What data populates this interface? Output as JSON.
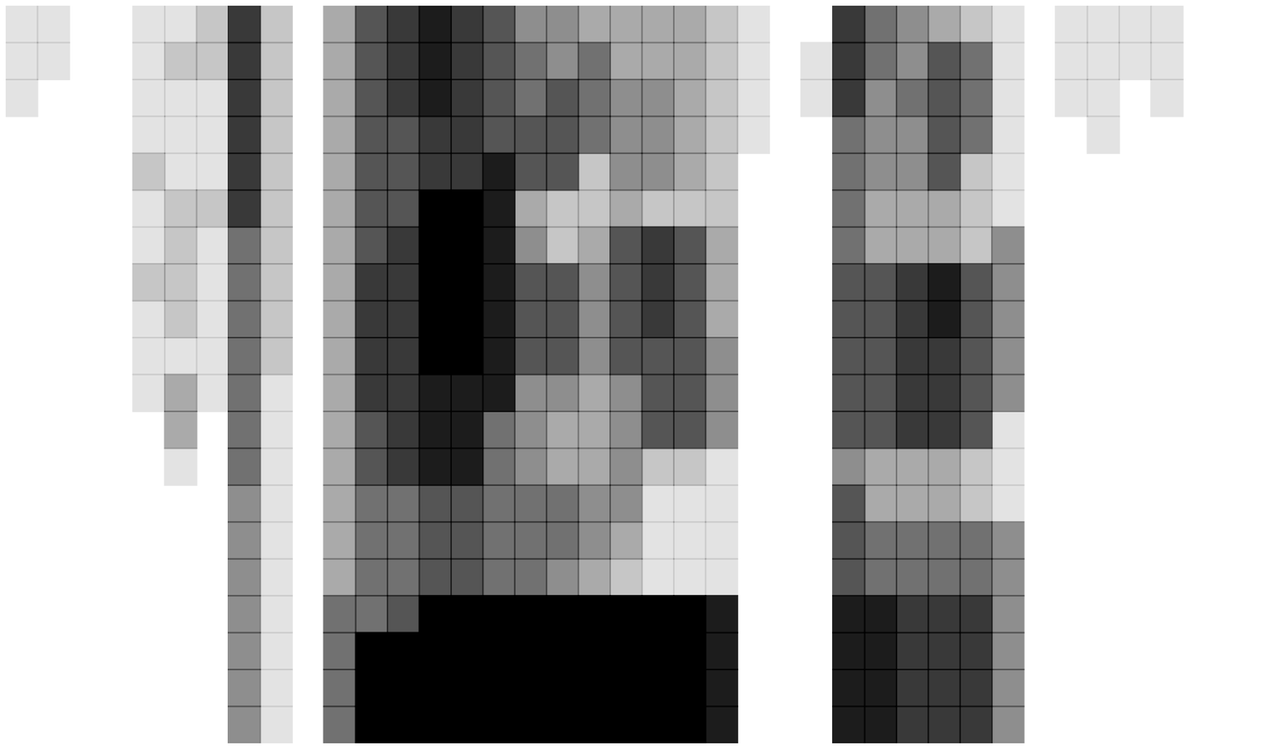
{
  "chart_data": {
    "type": "heatmap",
    "tick_labels": false,
    "xlim": [
      0,
      40
    ],
    "ylim": [
      0,
      20
    ],
    "value_range": [
      0,
      9
    ],
    "color": "#000000",
    "cells": [
      [
        1,
        1,
        1,
        0,
        0,
        0,
        0,
        0,
        0,
        0,
        0,
        0,
        0,
        0,
        0,
        0,
        0,
        0,
        0,
        0
      ],
      [
        1,
        1,
        0,
        0,
        0,
        0,
        0,
        0,
        0,
        0,
        0,
        0,
        0,
        0,
        0,
        0,
        0,
        0,
        0,
        0
      ],
      [
        0,
        0,
        0,
        0,
        0,
        0,
        0,
        0,
        0,
        0,
        0,
        0,
        0,
        0,
        0,
        0,
        0,
        0,
        0,
        0
      ],
      [
        0,
        0,
        0,
        0,
        0,
        0,
        0,
        0,
        0,
        0,
        0,
        0,
        0,
        0,
        0,
        0,
        0,
        0,
        0,
        0
      ],
      [
        1,
        1,
        1,
        1,
        2,
        1,
        1,
        2,
        1,
        1,
        1,
        0,
        0,
        0,
        0,
        0,
        0,
        0,
        0,
        0
      ],
      [
        1,
        2,
        1,
        1,
        1,
        2,
        2,
        2,
        2,
        1,
        3,
        3,
        1,
        0,
        0,
        0,
        0,
        0,
        0,
        0
      ],
      [
        2,
        2,
        1,
        1,
        1,
        2,
        1,
        1,
        1,
        1,
        1,
        0,
        0,
        0,
        0,
        0,
        0,
        0,
        0,
        0
      ],
      [
        7,
        7,
        7,
        7,
        7,
        7,
        5,
        5,
        5,
        5,
        5,
        5,
        5,
        4,
        4,
        4,
        4,
        4,
        4,
        4
      ],
      [
        2,
        2,
        2,
        2,
        2,
        2,
        2,
        2,
        2,
        2,
        1,
        1,
        1,
        1,
        1,
        1,
        1,
        1,
        1,
        1
      ],
      [
        0,
        0,
        0,
        0,
        0,
        0,
        0,
        0,
        0,
        0,
        0,
        0,
        0,
        0,
        0,
        0,
        0,
        0,
        0,
        0
      ],
      [
        3,
        3,
        3,
        3,
        3,
        3,
        3,
        3,
        3,
        3,
        3,
        3,
        3,
        3,
        3,
        3,
        5,
        5,
        5,
        5
      ],
      [
        6,
        6,
        6,
        6,
        6,
        6,
        6,
        7,
        7,
        7,
        7,
        6,
        6,
        5,
        5,
        5,
        5,
        9,
        9,
        9
      ],
      [
        7,
        7,
        7,
        6,
        6,
        6,
        7,
        7,
        7,
        7,
        7,
        7,
        7,
        5,
        5,
        5,
        6,
        9,
        9,
        9
      ],
      [
        8,
        8,
        8,
        7,
        7,
        9,
        9,
        9,
        9,
        9,
        8,
        8,
        8,
        6,
        6,
        6,
        9,
        9,
        9,
        9
      ],
      [
        7,
        7,
        7,
        7,
        7,
        9,
        9,
        9,
        9,
        9,
        8,
        8,
        8,
        6,
        6,
        6,
        9,
        9,
        9,
        9
      ],
      [
        6,
        6,
        6,
        6,
        8,
        8,
        8,
        8,
        8,
        8,
        8,
        5,
        5,
        5,
        5,
        5,
        9,
        9,
        9,
        9
      ],
      [
        4,
        5,
        5,
        6,
        6,
        3,
        4,
        6,
        6,
        6,
        4,
        4,
        4,
        5,
        5,
        5,
        9,
        9,
        9,
        9
      ],
      [
        4,
        4,
        6,
        6,
        6,
        2,
        2,
        6,
        6,
        6,
        4,
        3,
        3,
        5,
        5,
        4,
        9,
        9,
        9,
        9
      ],
      [
        3,
        5,
        5,
        5,
        2,
        2,
        3,
        4,
        4,
        4,
        3,
        3,
        3,
        4,
        4,
        3,
        9,
        9,
        9,
        9
      ],
      [
        3,
        3,
        4,
        4,
        4,
        3,
        6,
        6,
        6,
        6,
        4,
        4,
        4,
        4,
        3,
        2,
        9,
        9,
        9,
        9
      ],
      [
        3,
        3,
        4,
        4,
        4,
        2,
        7,
        7,
        7,
        6,
        6,
        6,
        2,
        1,
        1,
        1,
        9,
        9,
        9,
        9
      ],
      [
        3,
        3,
        3,
        3,
        3,
        2,
        6,
        6,
        6,
        6,
        6,
        6,
        2,
        1,
        1,
        1,
        9,
        9,
        9,
        9
      ],
      [
        2,
        2,
        2,
        2,
        2,
        2,
        3,
        3,
        3,
        4,
        4,
        4,
        1,
        1,
        1,
        1,
        8,
        8,
        8,
        8
      ],
      [
        1,
        1,
        1,
        1,
        0,
        0,
        0,
        0,
        0,
        0,
        0,
        0,
        0,
        0,
        0,
        0,
        0,
        0,
        0,
        0
      ],
      [
        0,
        0,
        0,
        0,
        0,
        0,
        0,
        0,
        0,
        0,
        0,
        0,
        0,
        0,
        0,
        0,
        0,
        0,
        0,
        0
      ],
      [
        0,
        1,
        1,
        0,
        0,
        0,
        0,
        0,
        0,
        0,
        0,
        0,
        0,
        0,
        0,
        0,
        0,
        0,
        0,
        0
      ],
      [
        7,
        7,
        7,
        5,
        5,
        5,
        5,
        6,
        6,
        6,
        6,
        6,
        4,
        6,
        6,
        6,
        8,
        8,
        8,
        8
      ],
      [
        5,
        5,
        4,
        4,
        4,
        3,
        3,
        6,
        6,
        6,
        6,
        6,
        3,
        3,
        5,
        5,
        8,
        8,
        8,
        8
      ],
      [
        4,
        4,
        5,
        4,
        4,
        3,
        3,
        7,
        7,
        7,
        7,
        7,
        3,
        3,
        5,
        5,
        7,
        7,
        7,
        7
      ],
      [
        3,
        6,
        6,
        6,
        6,
        3,
        3,
        8,
        8,
        7,
        7,
        7,
        3,
        3,
        5,
        5,
        7,
        7,
        7,
        7
      ],
      [
        2,
        5,
        5,
        5,
        2,
        2,
        2,
        6,
        6,
        6,
        6,
        6,
        2,
        2,
        5,
        5,
        7,
        7,
        7,
        7
      ],
      [
        1,
        1,
        1,
        1,
        1,
        1,
        4,
        4,
        4,
        4,
        4,
        1,
        1,
        1,
        4,
        4,
        4,
        4,
        4,
        4
      ],
      [
        0,
        0,
        0,
        0,
        0,
        0,
        0,
        0,
        0,
        0,
        0,
        0,
        0,
        0,
        0,
        0,
        0,
        0,
        0,
        0
      ],
      [
        1,
        1,
        1,
        0,
        0,
        0,
        0,
        0,
        0,
        0,
        0,
        0,
        0,
        0,
        0,
        0,
        0,
        0,
        0,
        0
      ],
      [
        1,
        1,
        1,
        1,
        0,
        0,
        0,
        0,
        0,
        0,
        0,
        0,
        0,
        0,
        0,
        0,
        0,
        0,
        0,
        0
      ],
      [
        1,
        1,
        0,
        0,
        0,
        0,
        0,
        0,
        0,
        0,
        0,
        0,
        0,
        0,
        0,
        0,
        0,
        0,
        0,
        0
      ],
      [
        1,
        1,
        1,
        0,
        0,
        0,
        0,
        0,
        0,
        0,
        0,
        0,
        0,
        0,
        0,
        0,
        0,
        0,
        0,
        0
      ],
      [
        0,
        0,
        0,
        0,
        0,
        0,
        0,
        0,
        0,
        0,
        0,
        0,
        0,
        0,
        0,
        0,
        0,
        0,
        0,
        0
      ],
      [
        0,
        0,
        0,
        0,
        0,
        0,
        0,
        0,
        0,
        0,
        0,
        0,
        0,
        0,
        0,
        0,
        0,
        0,
        0,
        0
      ],
      [
        0,
        0,
        0,
        0,
        0,
        0,
        0,
        0,
        0,
        0,
        0,
        0,
        0,
        0,
        0,
        0,
        0,
        0,
        0,
        0
      ]
    ]
  }
}
